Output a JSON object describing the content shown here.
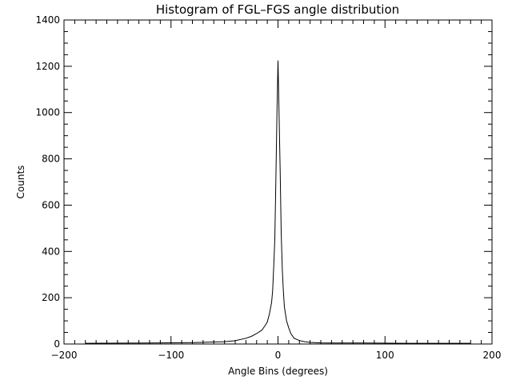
{
  "chart_data": {
    "type": "line",
    "title": "Histogram of FGL–FGS angle distribution",
    "xlabel": "Angle Bins (degrees)",
    "ylabel": "Counts",
    "xlim": [
      -200,
      200
    ],
    "ylim": [
      0,
      1400
    ],
    "xticks": [
      -200,
      -100,
      0,
      100,
      200
    ],
    "xtick_labels": [
      "−200",
      "−100",
      "0",
      "100",
      "200"
    ],
    "yticks": [
      0,
      200,
      400,
      600,
      800,
      1000,
      1200,
      1400
    ],
    "ytick_labels": [
      "0",
      "200",
      "400",
      "600",
      "800",
      "1000",
      "1200",
      "1400"
    ],
    "grid": false,
    "series": [
      {
        "x": [
          -180,
          -120,
          -80,
          -50,
          -40,
          -30,
          -25,
          -20,
          -15,
          -12,
          -10,
          -8,
          -6,
          -5,
          -4,
          -3,
          -2,
          -1,
          0,
          1,
          2,
          3,
          4,
          5,
          6,
          8,
          10,
          12,
          15,
          20,
          25,
          30,
          40,
          50,
          80,
          120,
          180
        ],
        "y": [
          3,
          4,
          6,
          10,
          14,
          25,
          33,
          45,
          60,
          80,
          95,
          130,
          180,
          230,
          330,
          450,
          700,
          1000,
          1225,
          1000,
          750,
          480,
          320,
          230,
          160,
          100,
          70,
          45,
          25,
          15,
          10,
          7,
          5,
          4,
          4,
          3,
          3
        ],
        "color": "#000000"
      }
    ]
  }
}
